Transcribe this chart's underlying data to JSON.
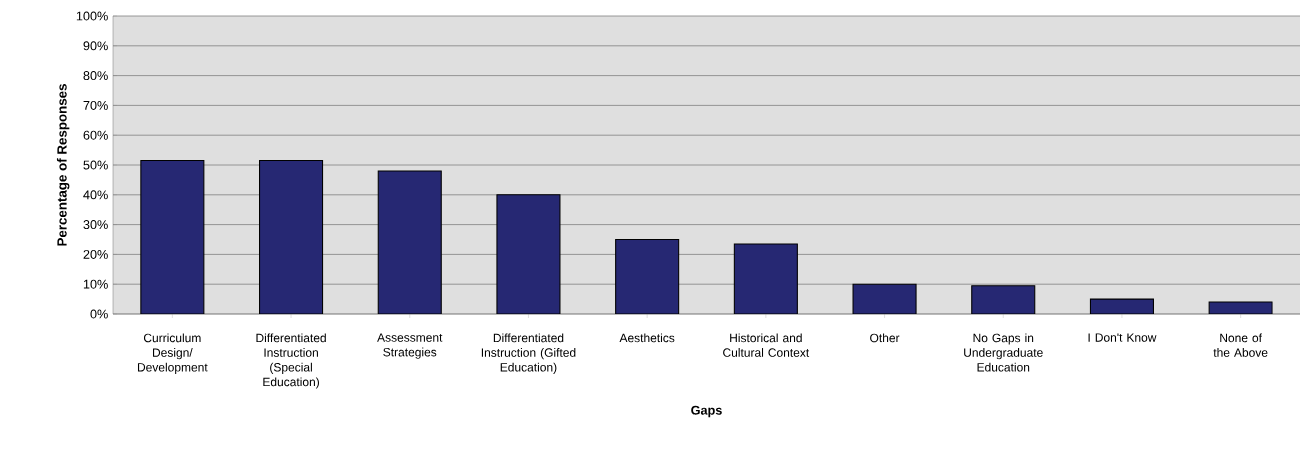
{
  "chart_data": {
    "type": "bar",
    "xlabel": "Gaps",
    "ylabel": "Percentage of Responses",
    "categories": [
      "Curriculum Design/ Development",
      "Differentiated Instruction (Special Education)",
      "Assessment Strategies",
      "Differentiated Instruction (Gifted Education)",
      "Aesthetics",
      "Historical and Cultural Context",
      "Other",
      "No Gaps in Undergraduate Education",
      "I Don't Know",
      "None of the Above"
    ],
    "values": [
      51.5,
      51.5,
      48,
      40,
      25,
      23.5,
      10,
      9.5,
      5,
      4
    ],
    "color": "#262873",
    "ylim": [
      0,
      100
    ],
    "yticks": [
      {
        "value": 0,
        "label": "0%"
      },
      {
        "value": 10,
        "label": "10%"
      },
      {
        "value": 20,
        "label": "20%"
      },
      {
        "value": 30,
        "label": "30%"
      },
      {
        "value": 40,
        "label": "40%"
      },
      {
        "value": 50,
        "label": "50%"
      },
      {
        "value": 60,
        "label": "60%"
      },
      {
        "value": 70,
        "label": "70%"
      },
      {
        "value": 80,
        "label": "80%"
      },
      {
        "value": 90,
        "label": "90%"
      },
      {
        "value": 100,
        "label": "100%"
      }
    ],
    "grid": "y"
  }
}
